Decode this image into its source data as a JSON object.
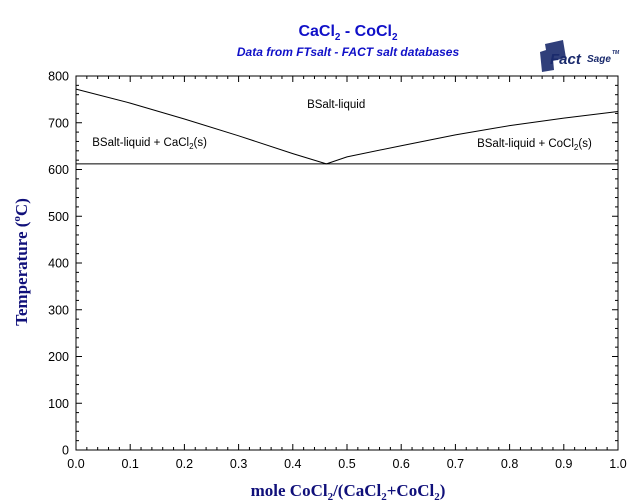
{
  "chart_data": {
    "type": "line",
    "title": {
      "base": "CaCl",
      "sub": "2",
      "mid": " - CoCl",
      "sub2": "2"
    },
    "subtitle": "Data from FTsalt - FACT salt databases",
    "ylabel": {
      "a": "Temperature (",
      "deg": "o",
      "b": "C)"
    },
    "xlabel": {
      "a": "mole CoCl",
      "s1": "2",
      "b": "/(CaCl",
      "s2": "2",
      "c": "+CoCl",
      "s3": "2",
      "d": ")"
    },
    "xlim": [
      0,
      1
    ],
    "ylim": [
      0,
      800
    ],
    "x_ticks": [
      "0.0",
      "0.1",
      "0.2",
      "0.3",
      "0.4",
      "0.5",
      "0.6",
      "0.7",
      "0.8",
      "0.9",
      "1.0"
    ],
    "y_ticks": [
      "0",
      "100",
      "200",
      "300",
      "400",
      "500",
      "600",
      "700",
      "800"
    ],
    "series": [
      {
        "values": [
          [
            0.0,
            772
          ],
          [
            0.1,
            742
          ],
          [
            0.2,
            708
          ],
          [
            0.3,
            672
          ],
          [
            0.4,
            634
          ],
          [
            0.462,
            612
          ]
        ]
      },
      {
        "values": [
          [
            0.462,
            612
          ],
          [
            0.5,
            627
          ],
          [
            0.6,
            651
          ],
          [
            0.7,
            674
          ],
          [
            0.8,
            694
          ],
          [
            0.9,
            710
          ],
          [
            1.0,
            724
          ]
        ]
      },
      {
        "values": [
          [
            0.0,
            612
          ],
          [
            1.0,
            612
          ]
        ]
      }
    ],
    "annotations": {
      "liquid": {
        "text": "BSalt-liquid",
        "x": 0.48,
        "y": 732
      },
      "left": {
        "pre": "BSalt-liquid + CaCl",
        "sub": "2",
        "post": "(s)",
        "x": 0.03,
        "y": 650
      },
      "right": {
        "pre": "BSalt-liquid + CoCl",
        "sub": "2",
        "post": "(s)",
        "x": 0.74,
        "y": 648
      }
    }
  },
  "logo": {
    "text1": "Fact",
    "text2": "Sage",
    "tm": "TM"
  }
}
